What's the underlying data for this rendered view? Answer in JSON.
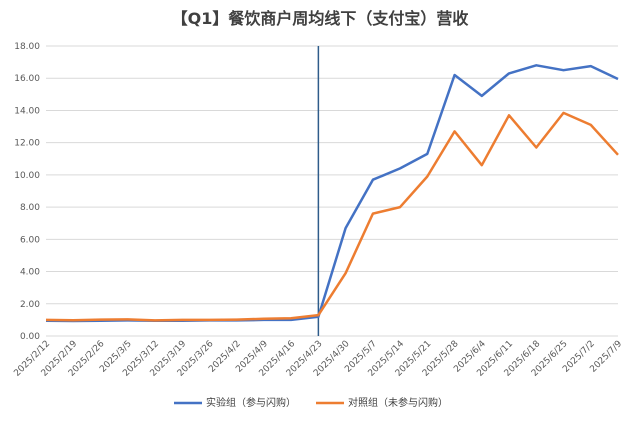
{
  "chart_data": {
    "type": "line",
    "title": "【Q1】餐饮商户周均线下（支付宝）营收",
    "x": [
      "2025/2/12",
      "2025/2/19",
      "2025/2/26",
      "2025/3/5",
      "2025/3/12",
      "2025/3/19",
      "2025/3/26",
      "2025/4/2",
      "2025/4/9",
      "2025/4/16",
      "2025/4/23",
      "2025/4/30",
      "2025/5/7",
      "2025/5/14",
      "2025/5/21",
      "2025/5/28",
      "2025/6/4",
      "2025/6/11",
      "2025/6/18",
      "2025/6/25",
      "2025/7/2",
      "2025/7/9"
    ],
    "y_ticks": [
      "0.00",
      "2.00",
      "4.00",
      "6.00",
      "8.00",
      "10.00",
      "12.00",
      "14.00",
      "16.00",
      "18.00"
    ],
    "ylim": [
      0,
      18
    ],
    "grid": true,
    "legend_position": "bottom",
    "vertical_marker_x": "2025/4/23",
    "series": [
      {
        "name": "实验组（参与闪购）",
        "color": "#4472C4",
        "values": [
          0.95,
          0.93,
          0.95,
          0.97,
          0.95,
          0.95,
          0.97,
          0.97,
          1.0,
          1.0,
          1.2,
          6.7,
          9.7,
          10.4,
          11.3,
          16.2,
          14.9,
          16.3,
          16.8,
          16.5,
          16.75,
          15.95
        ]
      },
      {
        "name": "对照组（未参与闪购）",
        "color": "#ED7D31",
        "values": [
          1.0,
          0.98,
          1.02,
          1.03,
          0.97,
          1.0,
          1.0,
          1.02,
          1.07,
          1.1,
          1.3,
          3.9,
          7.6,
          8.0,
          9.9,
          12.7,
          10.6,
          13.7,
          11.7,
          13.85,
          13.1,
          11.25
        ]
      }
    ]
  }
}
